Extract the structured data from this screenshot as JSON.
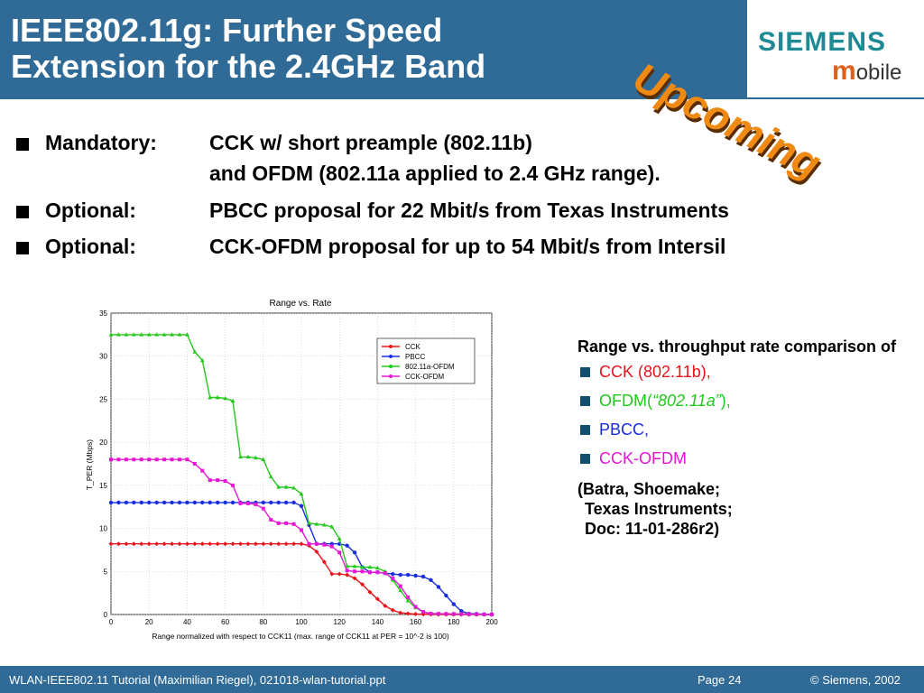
{
  "header": {
    "title_line1": "IEEE802.11g: Further Speed",
    "title_line2": "Extension for the 2.4GHz Band",
    "stamp": "Upcoming",
    "logo_brand": "SIEMENS",
    "logo_sub_m": "m",
    "logo_sub_rest": "obile"
  },
  "bullets": [
    {
      "label": "Mandatory:",
      "text": "CCK w/ short preample (802.11b)",
      "text2": "and OFDM (802.11a applied to 2.4 GHz range)."
    },
    {
      "label": "Optional:",
      "text": "PBCC proposal for 22 Mbit/s from Texas Instruments"
    },
    {
      "label": "Optional:",
      "text": "CCK-OFDM proposal for up to 54 Mbit/s from Intersil"
    }
  ],
  "side": {
    "heading": "Range vs. throughput rate comparison of",
    "items": [
      {
        "text": "CCK (802.11b),",
        "color": "#e8141c"
      },
      {
        "text_pre": "OFDM(",
        "text_em": "“802.11a”",
        "text_post": "),",
        "color": "#22c81c"
      },
      {
        "text": "PBCC,",
        "color": "#1a2ee0"
      },
      {
        "text": "CCK-OFDM",
        "color": "#e616d6"
      }
    ],
    "source_line1": "(Batra,  Shoemake;",
    "source_line2": "Texas Instruments;",
    "source_line3": "Doc: 11-01-286r2)"
  },
  "footer": {
    "left": "WLAN-IEEE802.11 Tutorial (Maximilian Riegel), 021018-wlan-tutorial.ppt",
    "page": "Page 24",
    "copyright": "© Siemens, 2002"
  },
  "chart_data": {
    "type": "line",
    "title": "Range vs. Rate",
    "xlabel": "Range normalized with respect to CCK11 (max. range of CCK11 at PER = 10^-2 is 100)",
    "ylabel": "T_PER (Mbps)",
    "xlim": [
      0,
      200
    ],
    "ylim": [
      0,
      35
    ],
    "xticks": [
      0,
      20,
      40,
      60,
      80,
      100,
      120,
      140,
      160,
      180,
      200
    ],
    "yticks": [
      0,
      5,
      10,
      15,
      20,
      25,
      30,
      35
    ],
    "grid": true,
    "legend_position": "upper-right",
    "series": [
      {
        "name": "CCK",
        "color": "#e8141c",
        "marker": "diamond",
        "x": [
          0,
          100,
          104,
          108,
          112,
          116,
          120,
          124,
          128,
          132,
          136,
          140,
          144,
          148,
          152,
          156,
          160,
          170,
          180,
          200
        ],
        "y": [
          8.2,
          8.2,
          8.0,
          7.3,
          6.1,
          4.7,
          4.7,
          4.6,
          4.2,
          3.5,
          2.6,
          1.8,
          1.0,
          0.5,
          0.2,
          0.1,
          0.05,
          0,
          0,
          0
        ]
      },
      {
        "name": "PBCC",
        "color": "#1a2ee0",
        "marker": "circle",
        "x": [
          0,
          96,
          100,
          104,
          108,
          112,
          116,
          120,
          124,
          128,
          132,
          136,
          140,
          144,
          148,
          152,
          156,
          160,
          164,
          168,
          172,
          176,
          180,
          184,
          188,
          200
        ],
        "y": [
          13,
          13,
          12.6,
          10.4,
          8.2,
          8.2,
          8.2,
          8.2,
          8.0,
          7.2,
          5.5,
          4.9,
          4.9,
          4.8,
          4.7,
          4.6,
          4.6,
          4.5,
          4.4,
          4.0,
          3.2,
          2.2,
          1.2,
          0.4,
          0.1,
          0
        ]
      },
      {
        "name": "802.11a-OFDM",
        "color": "#22c81c",
        "marker": "triangle",
        "x": [
          0,
          40,
          44,
          48,
          52,
          56,
          60,
          64,
          68,
          72,
          76,
          80,
          84,
          88,
          92,
          96,
          100,
          104,
          108,
          112,
          116,
          120,
          124,
          128,
          132,
          136,
          140,
          144,
          148,
          152,
          156,
          160,
          164,
          168,
          200
        ],
        "y": [
          32.5,
          32.5,
          30.5,
          29.5,
          25.2,
          25.2,
          25.1,
          24.8,
          18.3,
          18.3,
          18.2,
          18.0,
          16.0,
          14.8,
          14.8,
          14.7,
          14.0,
          10.6,
          10.5,
          10.4,
          10.2,
          8.8,
          5.6,
          5.6,
          5.5,
          5.5,
          5.4,
          5.0,
          4.0,
          2.8,
          1.6,
          0.8,
          0.3,
          0.1,
          0
        ]
      },
      {
        "name": "CCK-OFDM",
        "color": "#e616d6",
        "marker": "square",
        "x": [
          0,
          40,
          44,
          48,
          52,
          56,
          60,
          64,
          68,
          72,
          76,
          80,
          84,
          88,
          92,
          96,
          100,
          104,
          108,
          112,
          116,
          120,
          124,
          128,
          132,
          136,
          140,
          144,
          148,
          152,
          156,
          160,
          164,
          168,
          200
        ],
        "y": [
          18,
          18,
          17.5,
          16.7,
          15.6,
          15.6,
          15.5,
          15.0,
          12.9,
          12.9,
          12.8,
          12.3,
          11.0,
          10.6,
          10.6,
          10.5,
          9.8,
          8.2,
          8.2,
          8.1,
          7.9,
          7.2,
          5.1,
          5.0,
          5.0,
          4.9,
          4.9,
          4.8,
          4.2,
          3.3,
          2.0,
          0.9,
          0.3,
          0.1,
          0
        ]
      }
    ]
  }
}
